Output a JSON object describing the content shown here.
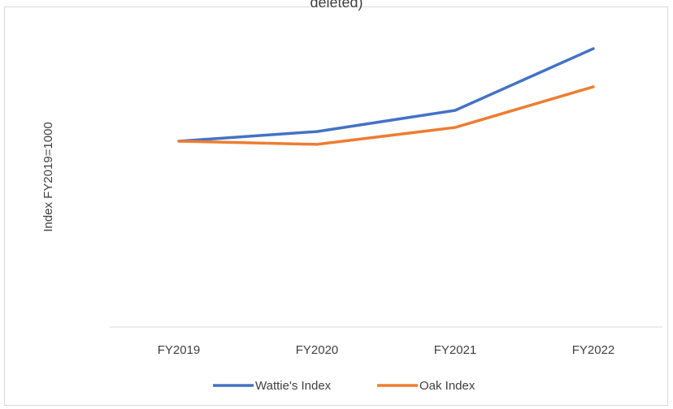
{
  "chart_data": {
    "type": "line",
    "title": "deleted)",
    "ylabel": "Index FY2019=1000",
    "categories": [
      "FY2019",
      "FY2020",
      "FY2021",
      "FY2022"
    ],
    "series": [
      {
        "name": "Wattie's Index",
        "color": "#4472c4",
        "values": [
          1000,
          1052,
          1166,
          1498
        ]
      },
      {
        "name": "Oak Index",
        "color": "#ed7d31",
        "values": [
          1000,
          983,
          1074,
          1293
        ]
      }
    ],
    "ylim": [
      0,
      1600
    ],
    "grid": false,
    "legend": "bottom"
  }
}
